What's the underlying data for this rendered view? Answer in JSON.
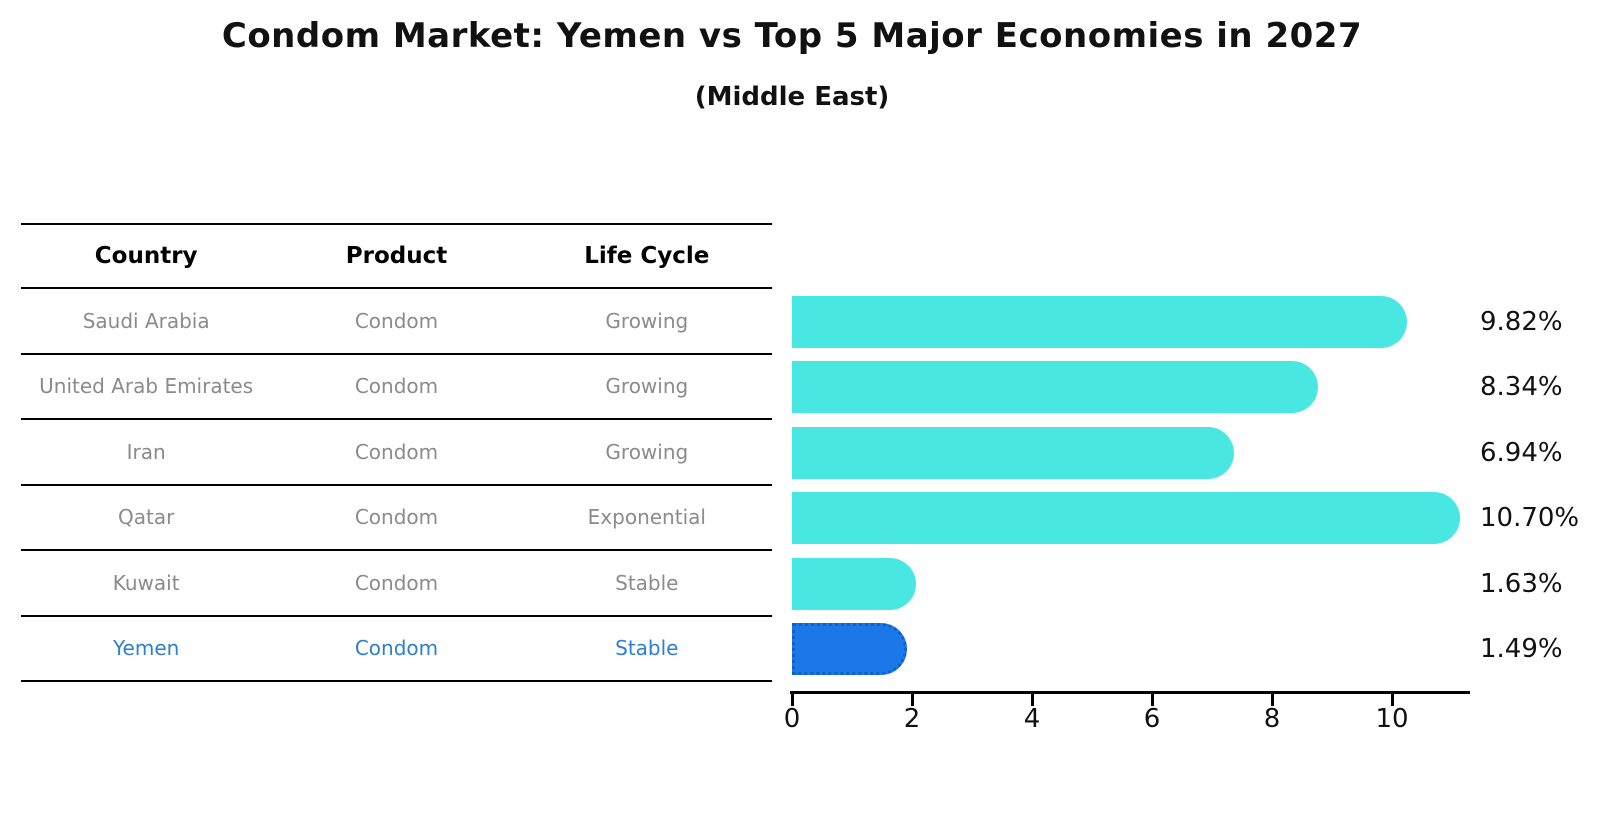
{
  "header": {
    "title": "Condom Market: Yemen vs Top 5 Major Economies in 2027",
    "subtitle": "(Middle East)"
  },
  "table": {
    "columns": [
      "Country",
      "Product",
      "Life Cycle"
    ],
    "rows": [
      {
        "country": "Saudi Arabia",
        "product": "Condom",
        "life_cycle": "Growing",
        "highlighted": false
      },
      {
        "country": "United Arab Emirates",
        "product": "Condom",
        "life_cycle": "Growing",
        "highlighted": false
      },
      {
        "country": "Iran",
        "product": "Condom",
        "life_cycle": "Growing",
        "highlighted": false
      },
      {
        "country": "Qatar",
        "product": "Condom",
        "life_cycle": "Exponential",
        "highlighted": false
      },
      {
        "country": "Kuwait",
        "product": "Condom",
        "life_cycle": "Stable",
        "highlighted": false
      },
      {
        "country": "Yemen",
        "product": "Condom",
        "life_cycle": "Stable",
        "highlighted": true
      }
    ]
  },
  "chart_data": {
    "type": "bar",
    "orientation": "horizontal",
    "title": "Condom Market: Yemen vs Top 5 Major Economies in 2027",
    "subtitle": "(Middle East)",
    "categories": [
      "Saudi Arabia",
      "United Arab Emirates",
      "Iran",
      "Qatar",
      "Kuwait",
      "Yemen"
    ],
    "values": [
      9.82,
      8.34,
      6.94,
      10.7,
      1.63,
      1.49
    ],
    "value_labels": [
      "9.82%",
      "8.34%",
      "6.94%",
      "10.70%",
      "1.63%",
      "1.49%"
    ],
    "highlight_category": "Yemen",
    "highlight_index": 5,
    "x_ticks": [
      0,
      2,
      4,
      6,
      8,
      10
    ],
    "xlim": [
      0,
      11.3
    ],
    "grid": false,
    "legend": false,
    "xlabel": "",
    "ylabel": ""
  },
  "colors": {
    "bar": "#48e7e2",
    "highlight_bar": "#1c78e8",
    "highlight_bar_border": "#0e5fd0",
    "highlight_text": "#2e7fcf",
    "table_text": "#8b8b8b",
    "header_text": "#000000",
    "value_text": "#111111",
    "axis": "#000000",
    "background": "#ffffff"
  }
}
